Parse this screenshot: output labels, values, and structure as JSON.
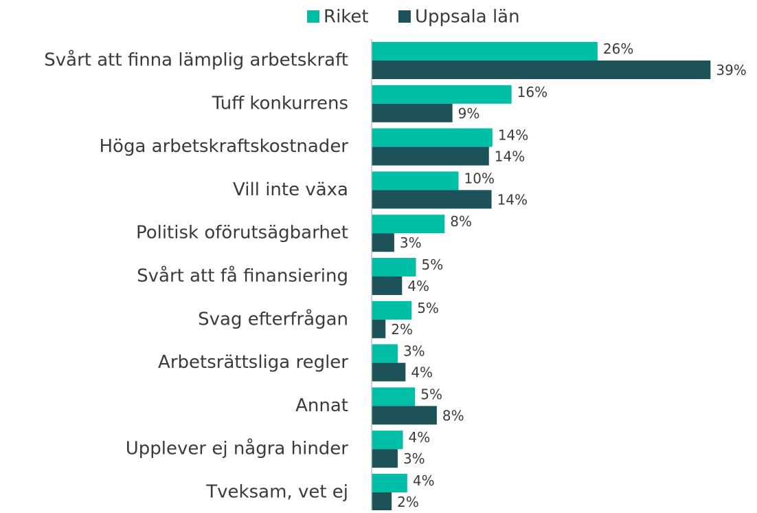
{
  "chart_data": {
    "type": "hbar",
    "categories": [
      "Svårt att finna lämplig arbetskraft",
      "Tuff konkurrens",
      "Höga arbetskraftskostnader",
      "Vill inte växa",
      "Politisk oförutsägbarhet",
      "Svårt att få finansiering",
      "Svag efterfrågan",
      "Arbetsrättsliga regler",
      "Annat",
      "Upplever ej några hinder",
      "Tveksam, vet ej"
    ],
    "series": [
      {
        "name": "Riket",
        "color": "#00bfa6",
        "values": [
          26,
          16.1,
          13.9,
          10,
          8.4,
          5.1,
          4.6,
          3,
          5,
          3.6,
          4.1
        ],
        "value_labels": [
          "26%",
          "16%",
          "14%",
          "10%",
          "8%",
          "5%",
          "5%",
          "3%",
          "5%",
          "4%",
          "4%"
        ]
      },
      {
        "name": "Uppsala län",
        "color": "#1e5259",
        "values": [
          39,
          9.3,
          13.5,
          13.8,
          2.6,
          3.5,
          1.6,
          3.9,
          7.5,
          3,
          2.3
        ],
        "value_labels": [
          "39%",
          "9%",
          "14%",
          "14%",
          "3%",
          "4%",
          "2%",
          "4%",
          "8%",
          "3%",
          "2%"
        ]
      }
    ],
    "xlim": [
      0,
      40
    ],
    "legend": "top"
  }
}
